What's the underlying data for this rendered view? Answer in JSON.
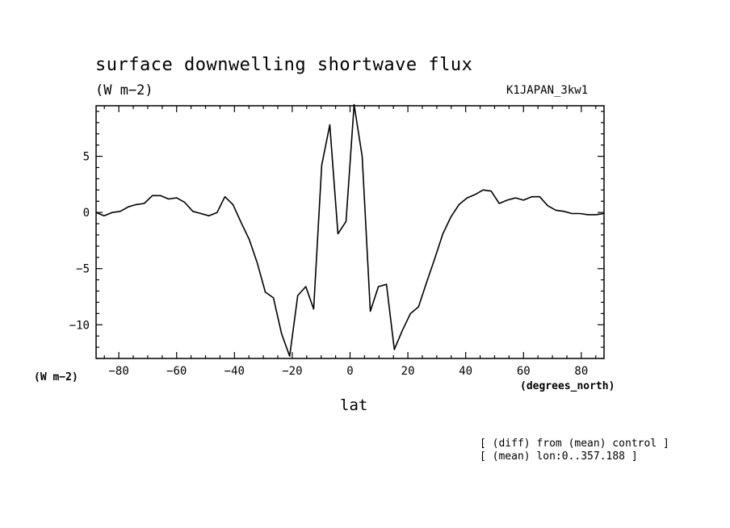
{
  "chart_data": {
    "type": "line",
    "title": "surface downwelling shortwave flux",
    "units_label": "(W m−2)",
    "run_label": "K1JAPAN_3kw1",
    "ylabel": "(W m−2)",
    "xlabel": "lat",
    "x_unit_label": "(degrees_north)",
    "xlim": [
      -87.86,
      87.86
    ],
    "ylim": [
      -13,
      9.5
    ],
    "x_ticks": [
      -80,
      -60,
      -40,
      -20,
      0,
      20,
      40,
      60,
      80
    ],
    "x_tick_labels": [
      "−80",
      "−60",
      "−40",
      "−20",
      "0",
      "20",
      "40",
      "60",
      "80"
    ],
    "y_ticks": [
      -10,
      -5,
      0,
      5
    ],
    "y_tick_labels": [
      "−10",
      "−5",
      "0",
      "5"
    ],
    "grid": false,
    "series": [
      {
        "x": [
          -87.86,
          -85.1,
          -82.3,
          -79.5,
          -76.7,
          -74.0,
          -71.2,
          -68.4,
          -65.6,
          -62.8,
          -60.0,
          -57.2,
          -54.4,
          -51.6,
          -48.8,
          -46.0,
          -43.3,
          -40.5,
          -37.7,
          -34.9,
          -32.1,
          -29.3,
          -26.5,
          -23.7,
          -20.9,
          -18.1,
          -15.3,
          -12.6,
          -9.8,
          -7.0,
          -4.2,
          -1.4,
          1.4,
          4.2,
          7.0,
          9.8,
          12.6,
          15.3,
          18.1,
          20.9,
          23.7,
          26.5,
          29.3,
          32.1,
          34.9,
          37.7,
          40.5,
          43.3,
          46.0,
          48.8,
          51.6,
          54.4,
          57.2,
          60.0,
          62.8,
          65.6,
          68.4,
          71.2,
          74.0,
          76.7,
          79.5,
          82.3,
          85.1,
          87.86
        ],
        "values": [
          0.0,
          -0.3,
          0.0,
          0.1,
          0.5,
          0.7,
          0.8,
          1.5,
          1.5,
          1.2,
          1.3,
          0.9,
          0.1,
          -0.1,
          -0.3,
          0.0,
          1.4,
          0.7,
          -0.9,
          -2.4,
          -4.5,
          -7.1,
          -7.6,
          -10.8,
          -12.8,
          -7.4,
          -6.6,
          -8.6,
          4.2,
          7.8,
          -1.9,
          -0.8,
          9.6,
          5.0,
          -8.8,
          -6.6,
          -6.4,
          -12.2,
          -10.5,
          -9.0,
          -8.4,
          -6.2,
          -4.1,
          -1.9,
          -0.4,
          0.7,
          1.3,
          1.6,
          2.0,
          1.9,
          0.8,
          1.1,
          1.3,
          1.1,
          1.4,
          1.4,
          0.6,
          0.2,
          0.1,
          -0.1,
          -0.1,
          -0.2,
          -0.2,
          -0.1
        ]
      }
    ],
    "annotations": [
      "[ (diff) from (mean) control ]",
      "[ (mean) lon:0..357.188 ]"
    ]
  }
}
